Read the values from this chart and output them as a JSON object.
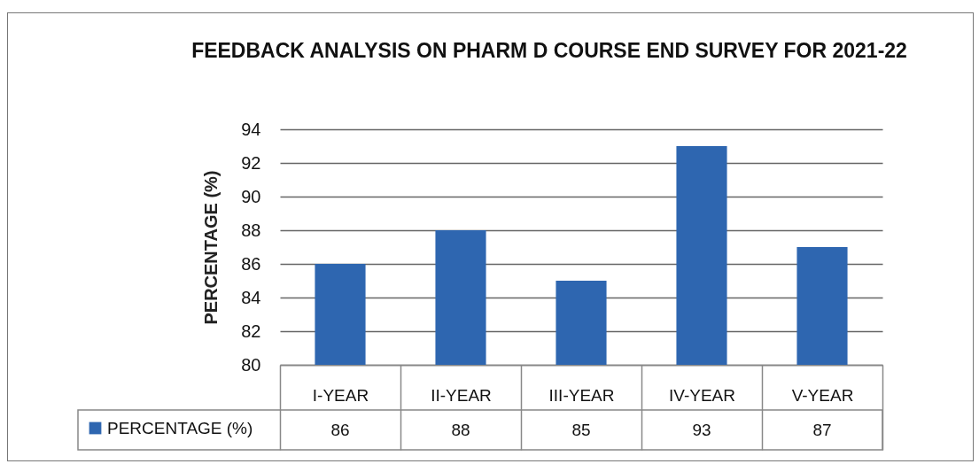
{
  "chart_data": {
    "type": "bar",
    "title": "FEEDBACK ANALYSIS ON PHARM D COURSE END SURVEY FOR 2021-22",
    "ylabel": "PERCENTAGE (%)",
    "categories": [
      "I-YEAR",
      "II-YEAR",
      "III-YEAR",
      "IV-YEAR",
      "V-YEAR"
    ],
    "series": [
      {
        "name": "PERCENTAGE (%)",
        "color": "#2e66b0",
        "values": [
          86,
          88,
          85,
          93,
          87
        ]
      }
    ],
    "ylim": [
      80,
      94
    ],
    "yticks": [
      80,
      82,
      84,
      86,
      88,
      90,
      92,
      94
    ],
    "grid": "y",
    "legend": "bottom left",
    "data_labels": true
  }
}
